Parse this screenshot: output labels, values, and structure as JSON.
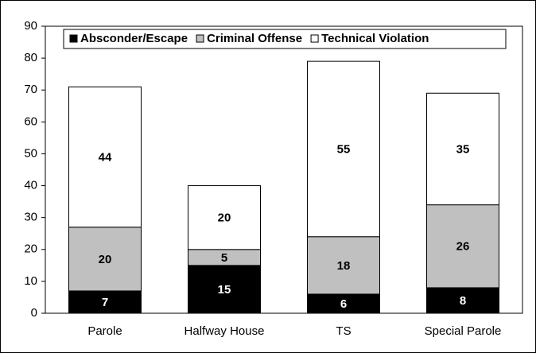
{
  "chart_data": {
    "type": "stacked_bar",
    "categories": [
      "Parole",
      "Halfway House",
      "TS",
      "Special Parole"
    ],
    "series": [
      {
        "name": "Absconder/Escape",
        "color": "#000000",
        "values": [
          7,
          15,
          6,
          8
        ]
      },
      {
        "name": "Criminal Offense",
        "color": "#c0c0c0",
        "values": [
          20,
          5,
          18,
          26
        ]
      },
      {
        "name": "Technical Violation",
        "color": "#ffffff",
        "values": [
          44,
          20,
          55,
          35
        ]
      }
    ],
    "ylim": [
      0,
      90
    ],
    "yticks": [
      0,
      10,
      20,
      30,
      40,
      50,
      60,
      70,
      80,
      90
    ],
    "grid": false,
    "legend": "top"
  }
}
